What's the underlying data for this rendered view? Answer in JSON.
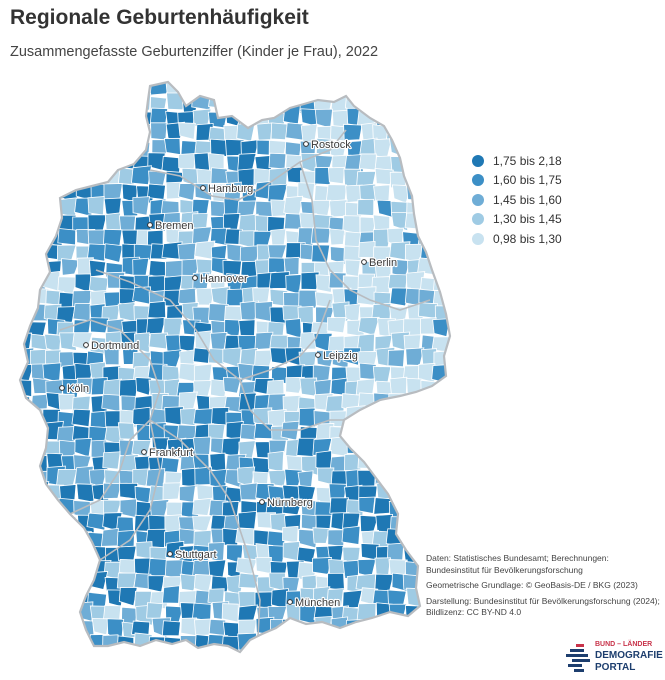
{
  "title": "Regionale Geburtenhäufigkeit",
  "subtitle": "Zusammengefasste Geburtenziffer (Kinder je Frau), 2022",
  "legend": [
    {
      "label": "1,75 bis 2,18",
      "color": "#1f78b4"
    },
    {
      "label": "1,60 bis 1,75",
      "color": "#3c8fc6"
    },
    {
      "label": "1,45 bis 1,60",
      "color": "#6fadd6"
    },
    {
      "label": "1,30 bis 1,45",
      "color": "#9fcbe4"
    },
    {
      "label": "0,98 bis 1,30",
      "color": "#c8e2f0"
    }
  ],
  "cities": [
    {
      "name": "Rostock"
    },
    {
      "name": "Hamburg"
    },
    {
      "name": "Bremen"
    },
    {
      "name": "Berlin"
    },
    {
      "name": "Hannover"
    },
    {
      "name": "Dortmund"
    },
    {
      "name": "Leipzig"
    },
    {
      "name": "Köln"
    },
    {
      "name": "Frankfurt"
    },
    {
      "name": "Nürnberg"
    },
    {
      "name": "Stuttgart"
    },
    {
      "name": "München"
    }
  ],
  "source": {
    "line1": "Daten: Statistisches Bundesamt; Berechnungen: Bundesinstitut für Bevölkerungsforschung",
    "line2": "Geometrische Grundlage: © GeoBasis-DE / BKG (2023)",
    "line3": "Darstellung: Bundesinstitut für Bevölkerungsforschung (2024); Bildlizenz: CC BY-ND 4.0"
  },
  "logo": {
    "top": "BUND – LÄNDER",
    "middle": "DEMOGRAFIE",
    "bottom": "PORTAL"
  }
}
